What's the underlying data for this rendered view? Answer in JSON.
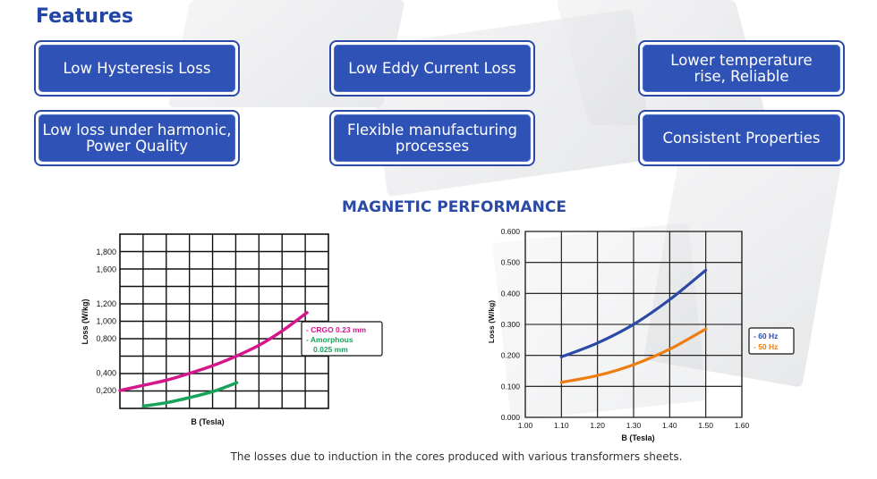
{
  "features": {
    "title": "Features",
    "items": [
      {
        "label": "Low Hysteresis Loss"
      },
      {
        "label": "Low Eddy Current Loss"
      },
      {
        "label": "Lower temperature\nrise, Reliable"
      },
      {
        "label": "Low loss under harmonic,\nPower Quality"
      },
      {
        "label": "Flexible manufacturing\nprocesses"
      },
      {
        "label": "Consistent Properties"
      }
    ]
  },
  "performance": {
    "title": "MAGNETIC PERFORMANCE"
  },
  "caption": "The losses due to induction in the cores produced with various transformers sheets.",
  "chart_data": [
    {
      "type": "line",
      "xlabel": "B (Tesla)",
      "ylabel": "Loss (W/kg)",
      "y_ticks": [
        {
          "value": 0.2,
          "label": "0,200"
        },
        {
          "value": 0.4,
          "label": "0,400"
        },
        {
          "value": 0.8,
          "label": "0,800"
        },
        {
          "value": 1.0,
          "label": "1,000"
        },
        {
          "value": 1.2,
          "label": "1,200"
        },
        {
          "value": 1.6,
          "label": "1,600"
        },
        {
          "value": 1.8,
          "label": "1,800"
        }
      ],
      "ylim": [
        0,
        1.8
      ],
      "x_points": [
        0,
        1,
        2,
        3,
        4,
        5,
        6,
        7,
        8
      ],
      "grid": true,
      "legend_position": "right",
      "series": [
        {
          "name": "CRGO 0.23 mm",
          "color": "#d4188c",
          "points": [
            [
              0,
              0.2
            ],
            [
              1,
              0.26
            ],
            [
              2,
              0.32
            ],
            [
              3,
              0.4
            ],
            [
              4,
              0.49
            ],
            [
              5,
              0.6
            ],
            [
              6,
              0.73
            ],
            [
              7,
              0.9
            ],
            [
              8,
              1.1
            ]
          ]
        },
        {
          "name": "Amorphous 0.025 mm",
          "color": "#17a35a",
          "points": [
            [
              1,
              0.02
            ],
            [
              2,
              0.06
            ],
            [
              3,
              0.12
            ],
            [
              4,
              0.19
            ],
            [
              5,
              0.29
            ]
          ]
        }
      ]
    },
    {
      "type": "line",
      "xlabel": "B (Tesla)",
      "ylabel": "Loss (W/kg)",
      "x_ticks": [
        {
          "value": 1.0,
          "label": "1.00"
        },
        {
          "value": 1.1,
          "label": "1.10"
        },
        {
          "value": 1.2,
          "label": "1.20"
        },
        {
          "value": 1.3,
          "label": "1.30"
        },
        {
          "value": 1.4,
          "label": "1.40"
        },
        {
          "value": 1.5,
          "label": "1.50"
        },
        {
          "value": 1.6,
          "label": "1.60"
        }
      ],
      "y_ticks": [
        {
          "value": 0.0,
          "label": "0.000"
        },
        {
          "value": 0.1,
          "label": "0.100"
        },
        {
          "value": 0.2,
          "label": "0.200"
        },
        {
          "value": 0.3,
          "label": "0.300"
        },
        {
          "value": 0.4,
          "label": "0.400"
        },
        {
          "value": 0.5,
          "label": "0.500"
        },
        {
          "value": 0.6,
          "label": "0.600"
        }
      ],
      "xlim": [
        1.0,
        1.6
      ],
      "ylim": [
        0,
        0.6
      ],
      "grid": true,
      "legend_position": "right",
      "series": [
        {
          "name": "60 Hz",
          "color": "#2a4aa6",
          "points": [
            [
              1.1,
              0.195
            ],
            [
              1.2,
              0.24
            ],
            [
              1.3,
              0.3
            ],
            [
              1.4,
              0.38
            ],
            [
              1.5,
              0.475
            ]
          ]
        },
        {
          "name": "50 Hz",
          "color": "#ee7d11",
          "points": [
            [
              1.1,
              0.113
            ],
            [
              1.2,
              0.135
            ],
            [
              1.3,
              0.17
            ],
            [
              1.4,
              0.22
            ],
            [
              1.5,
              0.285
            ]
          ]
        }
      ]
    }
  ]
}
